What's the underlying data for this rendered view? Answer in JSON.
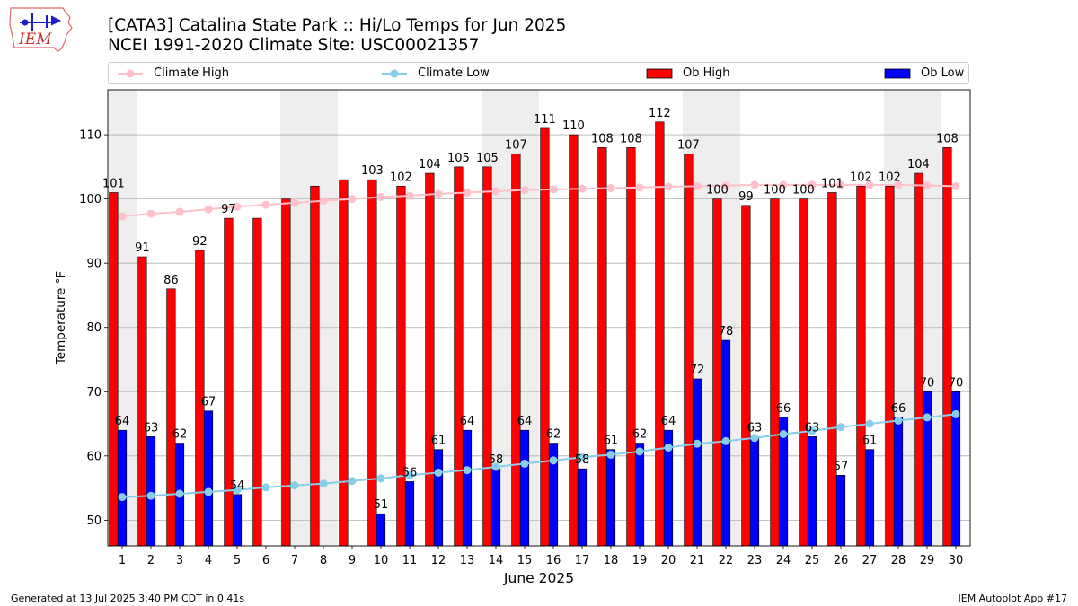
{
  "header": {
    "logo_text": "IEM",
    "title_line1": "[CATA3] Catalina State Park :: Hi/Lo Temps for Jun 2025",
    "title_line2": "NCEI 1991-2020 Climate Site: USC00021357"
  },
  "footer": {
    "generated": "Generated at 13 Jul 2025 3:40 PM CDT in 0.41s",
    "app": "IEM Autoplot App #17"
  },
  "colors": {
    "ob_high": "#ff0000",
    "ob_low": "#0000ff",
    "climate_high": "#ffc0cb",
    "climate_low": "#87ceeb",
    "weekend_shade": "#eeeeee",
    "grid": "#b0b0b0"
  },
  "chart_data": {
    "type": "bar",
    "title": "[CATA3] Catalina State Park :: Hi/Lo Temps for Jun 2025",
    "subtitle": "NCEI 1991-2020 Climate Site: USC00021357",
    "xlabel": "June 2025",
    "ylabel": "Temperature °F",
    "xlim": [
      0.5,
      30.5
    ],
    "ylim": [
      46,
      117
    ],
    "yticks": [
      50,
      60,
      70,
      80,
      90,
      100,
      110
    ],
    "grid": "y",
    "legend_position": "top",
    "categories": [
      "1",
      "2",
      "3",
      "4",
      "5",
      "6",
      "7",
      "8",
      "9",
      "10",
      "11",
      "12",
      "13",
      "14",
      "15",
      "16",
      "17",
      "18",
      "19",
      "20",
      "21",
      "22",
      "23",
      "24",
      "25",
      "26",
      "27",
      "28",
      "29",
      "30"
    ],
    "shaded_days": [
      1,
      7,
      8,
      14,
      15,
      21,
      22,
      28,
      29
    ],
    "series": [
      {
        "name": "Ob High",
        "kind": "bar",
        "color": "#ff0000",
        "values": [
          101,
          91,
          86,
          92,
          97,
          97,
          100,
          102,
          103,
          103,
          102,
          104,
          105,
          105,
          107,
          111,
          110,
          108,
          108,
          112,
          107,
          100,
          99,
          100,
          100,
          101,
          102,
          102,
          104,
          108
        ],
        "labels": [
          "101",
          "91",
          "86",
          "92",
          "97",
          null,
          null,
          null,
          null,
          "103",
          "102",
          "104",
          "105",
          "105",
          "107",
          "111",
          "110",
          "108",
          "108",
          "112",
          "107",
          "100",
          "99",
          "100",
          "100",
          "101",
          "102",
          "102",
          "104",
          "108"
        ]
      },
      {
        "name": "Ob Low",
        "kind": "bar",
        "color": "#0000ff",
        "values": [
          64,
          63,
          62,
          67,
          54,
          null,
          null,
          null,
          null,
          51,
          56,
          61,
          64,
          58,
          64,
          62,
          58,
          61,
          62,
          64,
          72,
          78,
          63,
          66,
          63,
          57,
          61,
          66,
          70,
          70
        ],
        "labels": [
          "64",
          "63",
          "62",
          "67",
          "54",
          null,
          null,
          null,
          null,
          "51",
          "56",
          "61",
          "64",
          "58",
          "64",
          "62",
          "58",
          "61",
          "62",
          "64",
          "72",
          "78",
          "63",
          "66",
          "63",
          "57",
          "61",
          "66",
          "70",
          "70"
        ]
      },
      {
        "name": "Climate High",
        "kind": "line",
        "color": "#ffc0cb",
        "values": [
          97.3,
          97.7,
          98.0,
          98.4,
          98.8,
          99.1,
          99.4,
          99.7,
          100.0,
          100.3,
          100.5,
          100.8,
          101.0,
          101.2,
          101.4,
          101.5,
          101.6,
          101.7,
          101.8,
          101.9,
          102.0,
          102.1,
          102.2,
          102.2,
          102.2,
          102.2,
          102.2,
          102.2,
          102.1,
          102.0
        ]
      },
      {
        "name": "Climate Low",
        "kind": "line",
        "color": "#87ceeb",
        "values": [
          53.6,
          53.8,
          54.1,
          54.4,
          54.7,
          55.1,
          55.4,
          55.7,
          56.1,
          56.5,
          57.0,
          57.4,
          57.8,
          58.3,
          58.8,
          59.3,
          59.8,
          60.2,
          60.7,
          61.3,
          61.9,
          62.3,
          62.8,
          63.4,
          63.9,
          64.5,
          65.0,
          65.5,
          66.0,
          66.5
        ]
      }
    ]
  }
}
